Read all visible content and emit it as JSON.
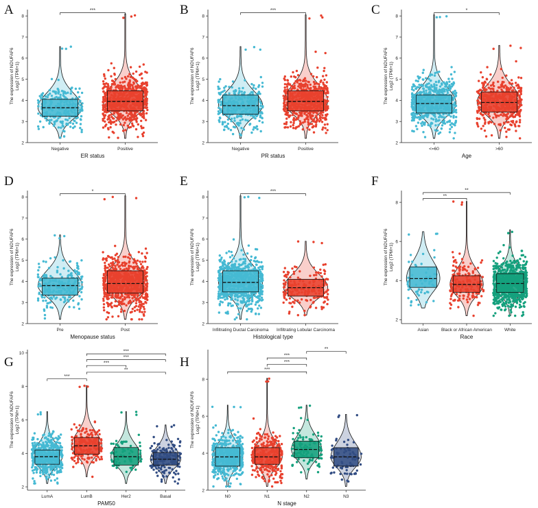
{
  "ylabel_main": "The expression of NDUFAF6",
  "ylabel_unit": "Log2 (TPM+1)",
  "colors": {
    "cyan": "#45b9d3",
    "red": "#e8412e",
    "green": "#14a07d",
    "navy": "#324d83"
  },
  "chart_data": [
    {
      "letter": "A",
      "type": "box-violin-jitter",
      "xlabel": "ER status",
      "ylim": [
        2,
        8.3
      ],
      "yticks": [
        2,
        3,
        4,
        5,
        6,
        7,
        8
      ],
      "groups": [
        {
          "name": "Negative",
          "color": "cyan",
          "n": 260,
          "median": 3.65,
          "q1": 3.25,
          "q3": 4.05,
          "lo": 2.2,
          "hi": 6.55,
          "sd": 0.55
        },
        {
          "name": "Positive",
          "color": "red",
          "n": 700,
          "median": 3.95,
          "q1": 3.5,
          "q3": 4.45,
          "lo": 2.2,
          "hi": 8.1,
          "sd": 0.6
        }
      ],
      "comparisons": [
        {
          "from": 0,
          "to": 1,
          "label": "***",
          "y": 8.15
        }
      ]
    },
    {
      "letter": "B",
      "type": "box-violin-jitter",
      "xlabel": "PR status",
      "ylim": [
        2,
        8.3
      ],
      "yticks": [
        2,
        3,
        4,
        5,
        6,
        7,
        8
      ],
      "groups": [
        {
          "name": "Negative",
          "color": "cyan",
          "n": 330,
          "median": 3.75,
          "q1": 3.35,
          "q3": 4.25,
          "lo": 2.2,
          "hi": 6.55,
          "sd": 0.55
        },
        {
          "name": "Positive",
          "color": "red",
          "n": 650,
          "median": 3.95,
          "q1": 3.5,
          "q3": 4.45,
          "lo": 2.2,
          "hi": 8.05,
          "sd": 0.6
        }
      ],
      "comparisons": [
        {
          "from": 0,
          "to": 1,
          "label": "***",
          "y": 8.15
        }
      ]
    },
    {
      "letter": "C",
      "type": "box-violin-jitter",
      "xlabel": "Age",
      "ylim": [
        2,
        8.3
      ],
      "yticks": [
        2,
        3,
        4,
        5,
        6,
        7,
        8
      ],
      "groups": [
        {
          "name": "<=60",
          "color": "cyan",
          "n": 600,
          "median": 3.85,
          "q1": 3.4,
          "q3": 4.25,
          "lo": 2.2,
          "hi": 8.05,
          "sd": 0.6
        },
        {
          "name": ">60",
          "color": "red",
          "n": 480,
          "median": 3.9,
          "q1": 3.45,
          "q3": 4.4,
          "lo": 2.2,
          "hi": 6.6,
          "sd": 0.6
        }
      ],
      "comparisons": [
        {
          "from": 0,
          "to": 1,
          "label": "*",
          "y": 8.15
        }
      ]
    },
    {
      "letter": "D",
      "type": "box-violin-jitter",
      "xlabel": "Menopause status",
      "ylim": [
        2,
        8.3
      ],
      "yticks": [
        2,
        3,
        4,
        5,
        6,
        7,
        8
      ],
      "groups": [
        {
          "name": "Pre",
          "color": "cyan",
          "n": 230,
          "median": 3.8,
          "q1": 3.35,
          "q3": 4.15,
          "lo": 2.2,
          "hi": 6.2,
          "sd": 0.55
        },
        {
          "name": "Post",
          "color": "red",
          "n": 700,
          "median": 3.9,
          "q1": 3.45,
          "q3": 4.5,
          "lo": 2.2,
          "hi": 8.05,
          "sd": 0.62
        }
      ],
      "comparisons": [
        {
          "from": 0,
          "to": 1,
          "label": "*",
          "y": 8.15
        }
      ]
    },
    {
      "letter": "E",
      "type": "box-violin-jitter",
      "xlabel": "Histological type",
      "ylim": [
        2,
        8.3
      ],
      "yticks": [
        2,
        3,
        4,
        5,
        6,
        7,
        8
      ],
      "groups": [
        {
          "name": "Infiltrating Ductal Carcinoma",
          "color": "cyan",
          "n": 780,
          "median": 3.95,
          "q1": 3.5,
          "q3": 4.5,
          "lo": 2.2,
          "hi": 8.05,
          "sd": 0.6
        },
        {
          "name": "Infiltrating Lobular Carcinoma",
          "color": "red",
          "n": 200,
          "median": 3.7,
          "q1": 3.3,
          "q3": 4.1,
          "lo": 2.4,
          "hi": 5.9,
          "sd": 0.5
        }
      ],
      "comparisons": [
        {
          "from": 0,
          "to": 1,
          "label": "***",
          "y": 8.15
        }
      ]
    },
    {
      "letter": "F",
      "type": "box-violin-jitter",
      "xlabel": "Race",
      "ylim": [
        1.8,
        8.6
      ],
      "yticks": [
        2,
        4,
        6,
        8
      ],
      "groups": [
        {
          "name": "Asian",
          "color": "cyan",
          "n": 60,
          "median": 4.1,
          "q1": 3.65,
          "q3": 4.7,
          "lo": 2.6,
          "hi": 6.5,
          "sd": 0.7
        },
        {
          "name": "Black or African American",
          "color": "red",
          "n": 180,
          "median": 3.8,
          "q1": 3.4,
          "q3": 4.25,
          "lo": 2.2,
          "hi": 8.05,
          "sd": 0.6
        },
        {
          "name": "White",
          "color": "green",
          "n": 750,
          "median": 3.85,
          "q1": 3.4,
          "q3": 4.35,
          "lo": 2.2,
          "hi": 6.6,
          "sd": 0.6
        }
      ],
      "comparisons": [
        {
          "from": 0,
          "to": 1,
          "label": "**",
          "y": 8.2
        },
        {
          "from": 0,
          "to": 2,
          "label": "**",
          "y": 8.5
        }
      ]
    },
    {
      "letter": "G",
      "type": "box-violin-jitter",
      "xlabel": "PAM50",
      "ylim": [
        1.8,
        10.2
      ],
      "yticks": [
        2,
        4,
        6,
        8,
        10
      ],
      "groups": [
        {
          "name": "LumA",
          "color": "cyan",
          "n": 500,
          "median": 3.8,
          "q1": 3.35,
          "q3": 4.2,
          "lo": 2.2,
          "hi": 6.5,
          "sd": 0.6
        },
        {
          "name": "LumB",
          "color": "red",
          "n": 200,
          "median": 4.45,
          "q1": 3.95,
          "q3": 4.95,
          "lo": 2.6,
          "hi": 8.05,
          "sd": 0.65
        },
        {
          "name": "Her2",
          "color": "green",
          "n": 80,
          "median": 3.8,
          "q1": 3.3,
          "q3": 4.35,
          "lo": 2.2,
          "hi": 6.5,
          "sd": 0.6
        },
        {
          "name": "Basal",
          "color": "navy",
          "n": 180,
          "median": 3.65,
          "q1": 3.3,
          "q3": 4.05,
          "lo": 2.2,
          "hi": 5.7,
          "sd": 0.55
        }
      ],
      "comparisons": [
        {
          "from": 0,
          "to": 1,
          "label": "***",
          "y": 8.45
        },
        {
          "from": 1,
          "to": 3,
          "label": "**",
          "y": 8.85
        },
        {
          "from": 1,
          "to": 2,
          "label": "***",
          "y": 9.25
        },
        {
          "from": 1,
          "to": 3,
          "label": "***",
          "y": 9.6
        },
        {
          "from": 1,
          "to": 3,
          "label": "***",
          "y": 9.95
        }
      ]
    },
    {
      "letter": "H",
      "type": "box-violin-jitter",
      "xlabel": "N stage",
      "ylim": [
        2,
        9.6
      ],
      "yticks": [
        2,
        4,
        6,
        8
      ],
      "groups": [
        {
          "name": "N0",
          "color": "cyan",
          "n": 500,
          "median": 3.8,
          "q1": 3.3,
          "q3": 4.3,
          "lo": 2.2,
          "hi": 6.6,
          "sd": 0.6
        },
        {
          "name": "N1",
          "color": "red",
          "n": 360,
          "median": 3.8,
          "q1": 3.4,
          "q3": 4.3,
          "lo": 2.2,
          "hi": 8.05,
          "sd": 0.6
        },
        {
          "name": "N2",
          "color": "green",
          "n": 120,
          "median": 4.2,
          "q1": 3.75,
          "q3": 4.65,
          "lo": 2.6,
          "hi": 6.6,
          "sd": 0.6
        },
        {
          "name": "N3",
          "color": "navy",
          "n": 75,
          "median": 3.8,
          "q1": 3.3,
          "q3": 4.3,
          "lo": 2.2,
          "hi": 6.1,
          "sd": 0.6
        }
      ],
      "comparisons": [
        {
          "from": 0,
          "to": 2,
          "label": "***",
          "y": 8.4
        },
        {
          "from": 1,
          "to": 2,
          "label": "***",
          "y": 8.8
        },
        {
          "from": 1,
          "to": 2,
          "label": "***",
          "y": 9.15
        },
        {
          "from": 2,
          "to": 3,
          "label": "**",
          "y": 9.5
        }
      ]
    }
  ]
}
